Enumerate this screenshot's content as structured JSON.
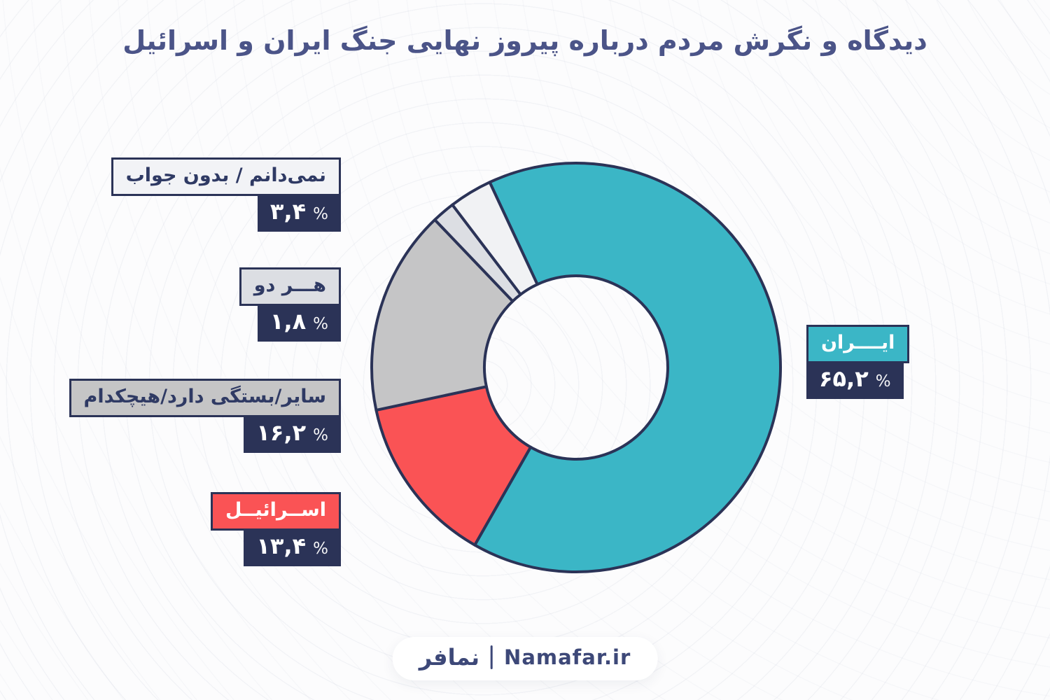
{
  "title": "دیدگاه و نگرش مردم درباره پیروز نهایی جنگ ایران و اسرائیل",
  "chart_data": {
    "type": "pie",
    "subtype": "donut",
    "title": "دیدگاه و نگرش مردم درباره پیروز نهایی جنگ ایران و اسرائیل",
    "categories": [
      "ایران",
      "اسرائیل",
      "سایر/بستگی دارد/هیچکدام",
      "هر دو",
      "نمی‌دانم / بدون جواب"
    ],
    "values": [
      65.2,
      13.4,
      16.2,
      1.8,
      3.4
    ],
    "value_labels_fa": [
      "۶۵,۲ %",
      "۱۳,۴ %",
      "۱۶,۲ %",
      "۱,۸ %",
      "۳,۴ %"
    ],
    "ids": [
      "iran",
      "israel",
      "other-depends-none",
      "both",
      "dont-know-no-answer"
    ],
    "colors": [
      "#3bb6c6",
      "#fa5355",
      "#c5c5c6",
      "#dcdee3",
      "#f1f2f4"
    ],
    "stroke_color": "#2b3357",
    "start_angle_deg": -25,
    "direction": "clockwise",
    "inner_radius_ratio": 0.447,
    "legend_position": "callout-boxes"
  },
  "callouts": [
    {
      "id": "dont-know",
      "label": "نمی‌دانم / بدون جواب",
      "value": "۳,۴",
      "percent_sign": "%",
      "box_bg": "#f2f3f6"
    },
    {
      "id": "both",
      "label": "هـــر دو",
      "value": "۱,۸",
      "percent_sign": "%",
      "box_bg": "#dcdee3"
    },
    {
      "id": "other",
      "label": "سایر/بستگی دارد/هیچکدام",
      "value": "۱۶,۲",
      "percent_sign": "%",
      "box_bg": "#c5c5c6"
    },
    {
      "id": "israel",
      "label": "اســرائیــل",
      "value": "۱۳,۴",
      "percent_sign": "%",
      "box_bg": "#fa5355"
    },
    {
      "id": "iran",
      "label": "ایــــران",
      "value": "۶۵,۲",
      "percent_sign": "%",
      "box_bg": "#3bb6c6"
    }
  ],
  "footer": {
    "brand_fa": "نمافر",
    "divider": "|",
    "brand_en": "Namafar.ir"
  },
  "colors": {
    "page_bg": "#fcfcfd",
    "ring_pattern": "#e9ebf1",
    "navy_box": "#2b3357",
    "slice_stroke": "#2b3357",
    "title_text": "#4b5488",
    "label_text": "#2f3a64",
    "teal": "#3bb6c6",
    "red": "#fa5355",
    "gray": "#c5c5c6",
    "light_gray": "#dcdee3",
    "near_white": "#f1f2f4"
  }
}
